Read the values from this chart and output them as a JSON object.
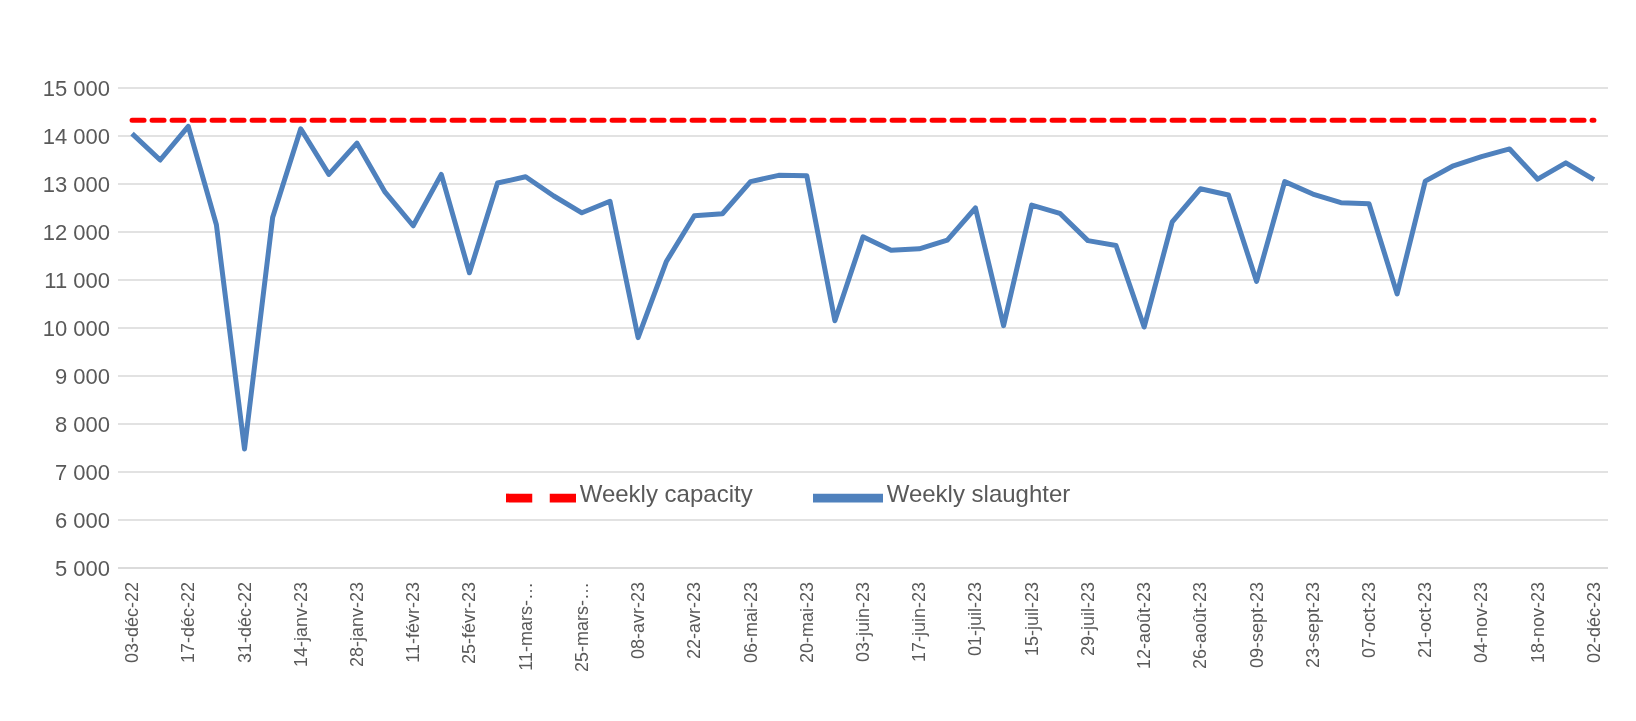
{
  "chart_data": {
    "type": "line",
    "categories": [
      "03-déc-22",
      null,
      "17-déc-22",
      null,
      "31-déc-22",
      null,
      "14-janv-23",
      null,
      "28-janv-23",
      null,
      "11-févr-23",
      null,
      "25-févr-23",
      null,
      "11-mars-…",
      null,
      "25-mars-…",
      null,
      "08-avr-23",
      null,
      "22-avr-23",
      null,
      "06-mai-23",
      null,
      "20-mai-23",
      null,
      "03-juin-23",
      null,
      "17-juin-23",
      null,
      "01-juil-23",
      null,
      "15-juil-23",
      null,
      "29-juil-23",
      null,
      "12-août-23",
      null,
      "26-août-23",
      null,
      "09-sept-23",
      null,
      "23-sept-23",
      null,
      "07-oct-23",
      null,
      "21-oct-23",
      null,
      "04-nov-23",
      null,
      "18-nov-23",
      null,
      "02-déc-23"
    ],
    "series": [
      {
        "name": "Weekly slaughter",
        "color": "#4f81bd",
        "line_style": "solid",
        "values": [
          14050,
          13500,
          14200,
          12150,
          7480,
          12300,
          14150,
          13200,
          13850,
          12830,
          12130,
          13200,
          11150,
          13020,
          13150,
          12750,
          12400,
          12640,
          9800,
          11380,
          12340,
          12380,
          13050,
          13180,
          13170,
          10150,
          11900,
          11620,
          11650,
          11830,
          12500,
          10050,
          12560,
          12390,
          11820,
          11720,
          10020,
          12210,
          12900,
          12770,
          10970,
          13050,
          12790,
          12610,
          12590,
          10710,
          13060,
          13380,
          13570,
          13730,
          13100,
          13440,
          13090
        ]
      },
      {
        "name": "Weekly capacity",
        "color": "#ff0000",
        "line_style": "dashed",
        "values": [
          14330,
          14330,
          14330,
          14330,
          14330,
          14330,
          14330,
          14330,
          14330,
          14330,
          14330,
          14330,
          14330,
          14330,
          14330,
          14330,
          14330,
          14330,
          14330,
          14330,
          14330,
          14330,
          14330,
          14330,
          14330,
          14330,
          14330,
          14330,
          14330,
          14330,
          14330,
          14330,
          14330,
          14330,
          14330,
          14330,
          14330,
          14330,
          14330,
          14330,
          14330,
          14330,
          14330,
          14330,
          14330,
          14330,
          14330,
          14330,
          14330,
          14330,
          14330,
          14330,
          14330
        ]
      }
    ],
    "ylim": [
      5000,
      15000
    ],
    "yticks": [
      {
        "value": 5000,
        "label": "5 000"
      },
      {
        "value": 6000,
        "label": "6 000"
      },
      {
        "value": 7000,
        "label": "7 000"
      },
      {
        "value": 8000,
        "label": "8 000"
      },
      {
        "value": 9000,
        "label": "9 000"
      },
      {
        "value": 10000,
        "label": "10 000"
      },
      {
        "value": 11000,
        "label": "11 000"
      },
      {
        "value": 12000,
        "label": "12 000"
      },
      {
        "value": 13000,
        "label": "13 000"
      },
      {
        "value": 14000,
        "label": "14 000"
      },
      {
        "value": 15000,
        "label": "15 000"
      }
    ],
    "grid": "y",
    "legend": "bottom",
    "marker": "none"
  }
}
